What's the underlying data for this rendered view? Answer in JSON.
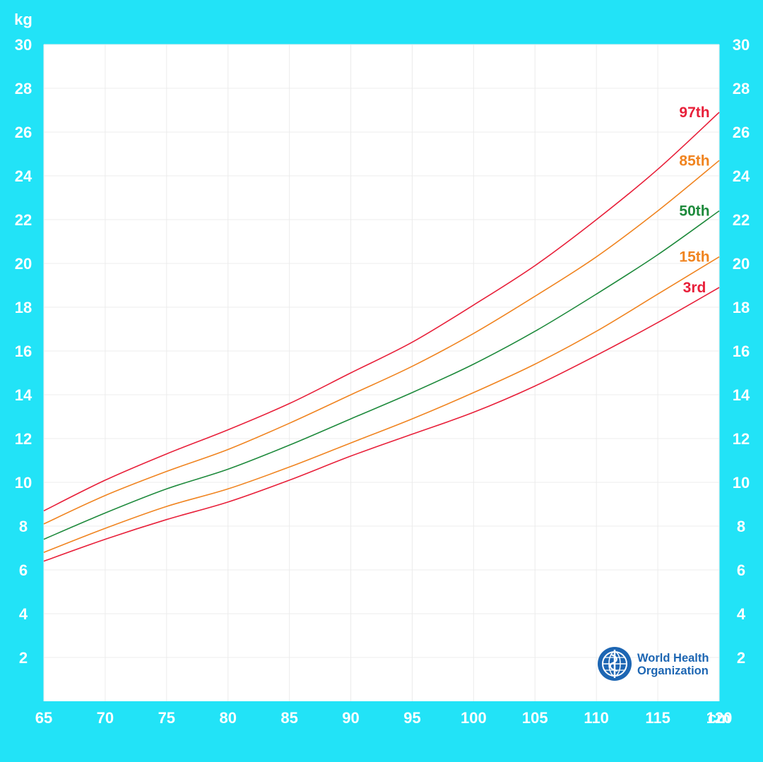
{
  "chart_data": {
    "type": "line",
    "x_unit": "cm",
    "y_unit": "kg",
    "xlim": [
      65,
      120
    ],
    "ylim": [
      0,
      30
    ],
    "x_ticks": [
      "65",
      "70",
      "75",
      "80",
      "85",
      "90",
      "95",
      "100",
      "105",
      "110",
      "115",
      "120"
    ],
    "y_ticks": [
      "2",
      "4",
      "6",
      "8",
      "10",
      "12",
      "14",
      "16",
      "18",
      "20",
      "22",
      "24",
      "26",
      "28",
      "30"
    ],
    "grid": true,
    "x": [
      65,
      70,
      75,
      80,
      85,
      90,
      95,
      100,
      105,
      110,
      115,
      120
    ],
    "series": [
      {
        "name": "97th",
        "color": "#e8203a",
        "values": [
          8.7,
          10.1,
          11.3,
          12.4,
          13.6,
          15.0,
          16.4,
          18.1,
          19.9,
          22.0,
          24.3,
          26.9
        ]
      },
      {
        "name": "85th",
        "color": "#f08420",
        "values": [
          8.1,
          9.4,
          10.5,
          11.5,
          12.7,
          14.0,
          15.3,
          16.8,
          18.5,
          20.3,
          22.4,
          24.7
        ]
      },
      {
        "name": "50th",
        "color": "#1e8a3c",
        "values": [
          7.4,
          8.6,
          9.7,
          10.6,
          11.7,
          12.9,
          14.1,
          15.4,
          16.9,
          18.6,
          20.4,
          22.4
        ]
      },
      {
        "name": "15th",
        "color": "#f08420",
        "values": [
          6.8,
          7.9,
          8.9,
          9.7,
          10.7,
          11.8,
          12.9,
          14.1,
          15.4,
          16.9,
          18.6,
          20.3
        ]
      },
      {
        "name": "3rd",
        "color": "#e8203a",
        "values": [
          6.4,
          7.4,
          8.3,
          9.1,
          10.1,
          11.2,
          12.2,
          13.2,
          14.4,
          15.8,
          17.3,
          18.9
        ]
      }
    ]
  },
  "logo": {
    "line1": "World Health",
    "line2": "Organization",
    "color": "#1d66b3"
  }
}
